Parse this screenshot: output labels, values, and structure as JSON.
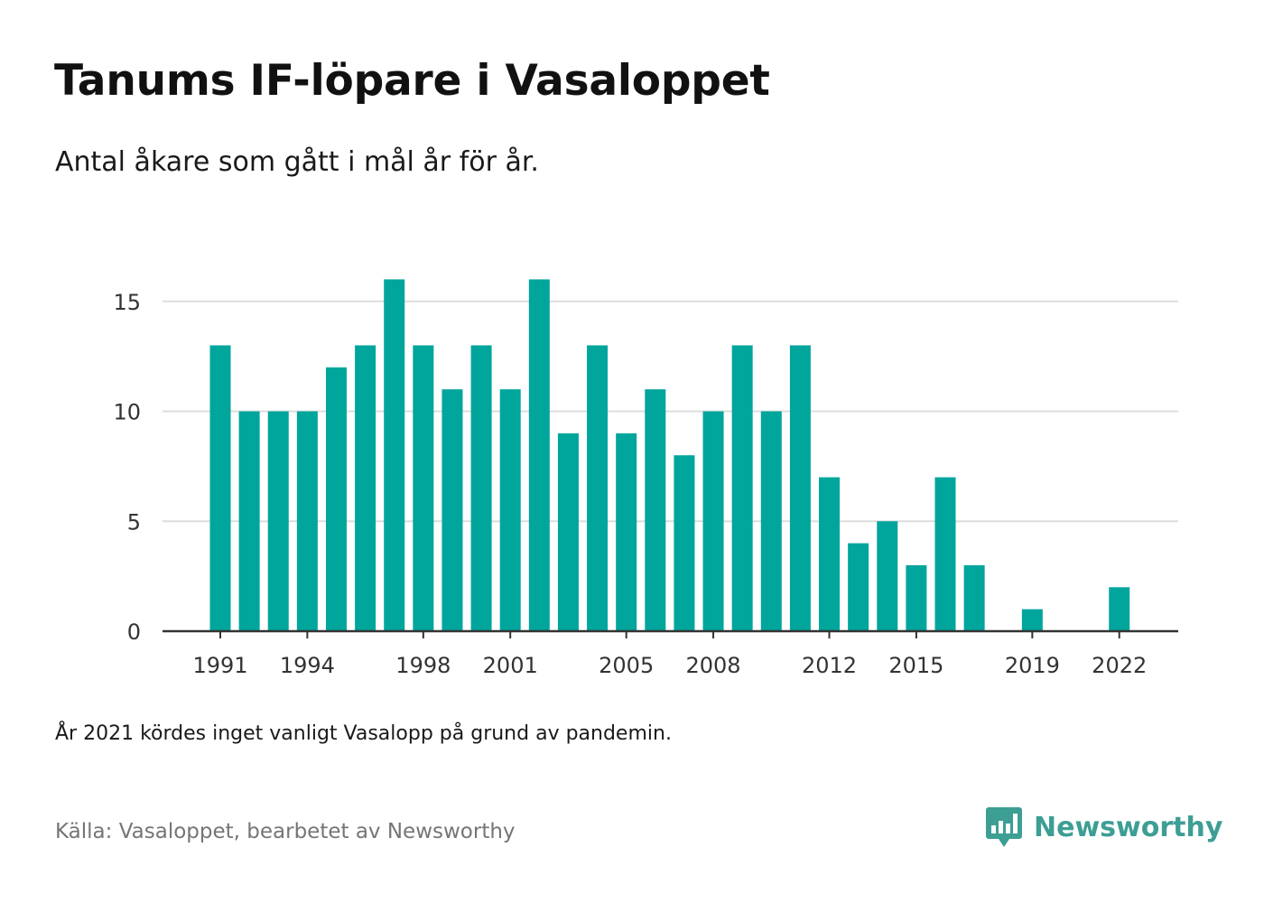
{
  "title": "Tanums IF-löpare i Vasaloppet",
  "subtitle": "Antal åkare som gått i mål år för år.",
  "note": "År 2021 kördes inget vanligt Vasalopp på grund av pandemin.",
  "source": "Källa: Vasaloppet, bearbetet av Newsworthy",
  "brand": {
    "name": "Newsworthy",
    "logo_icon": "newsworthy-chart-bubble-icon",
    "color": "#3d9e94"
  },
  "colors": {
    "bar": "#00a59c",
    "grid": "#dddddd",
    "axis": "#333333"
  },
  "chart_data": {
    "type": "bar",
    "title": "Tanums IF-löpare i Vasaloppet",
    "subtitle": "Antal åkare som gått i mål år för år.",
    "xlabel": "",
    "ylabel": "",
    "ylim": [
      0,
      16
    ],
    "yticks": [
      0,
      5,
      10,
      15
    ],
    "grid": true,
    "legend": "none",
    "categories": [
      1991,
      1992,
      1993,
      1994,
      1995,
      1996,
      1997,
      1998,
      1999,
      2000,
      2001,
      2002,
      2003,
      2004,
      2005,
      2006,
      2007,
      2008,
      2009,
      2010,
      2011,
      2012,
      2013,
      2014,
      2015,
      2016,
      2017,
      2018,
      2019,
      2020,
      2021,
      2022
    ],
    "values": [
      13,
      10,
      10,
      10,
      12,
      13,
      16,
      13,
      11,
      13,
      11,
      16,
      9,
      13,
      9,
      11,
      8,
      10,
      13,
      10,
      13,
      7,
      4,
      5,
      3,
      7,
      3,
      0,
      1,
      0,
      0,
      2
    ],
    "xtick_labels": [
      "1991",
      "1994",
      "1998",
      "2001",
      "2005",
      "2008",
      "2012",
      "2015",
      "2019",
      "2022"
    ]
  }
}
